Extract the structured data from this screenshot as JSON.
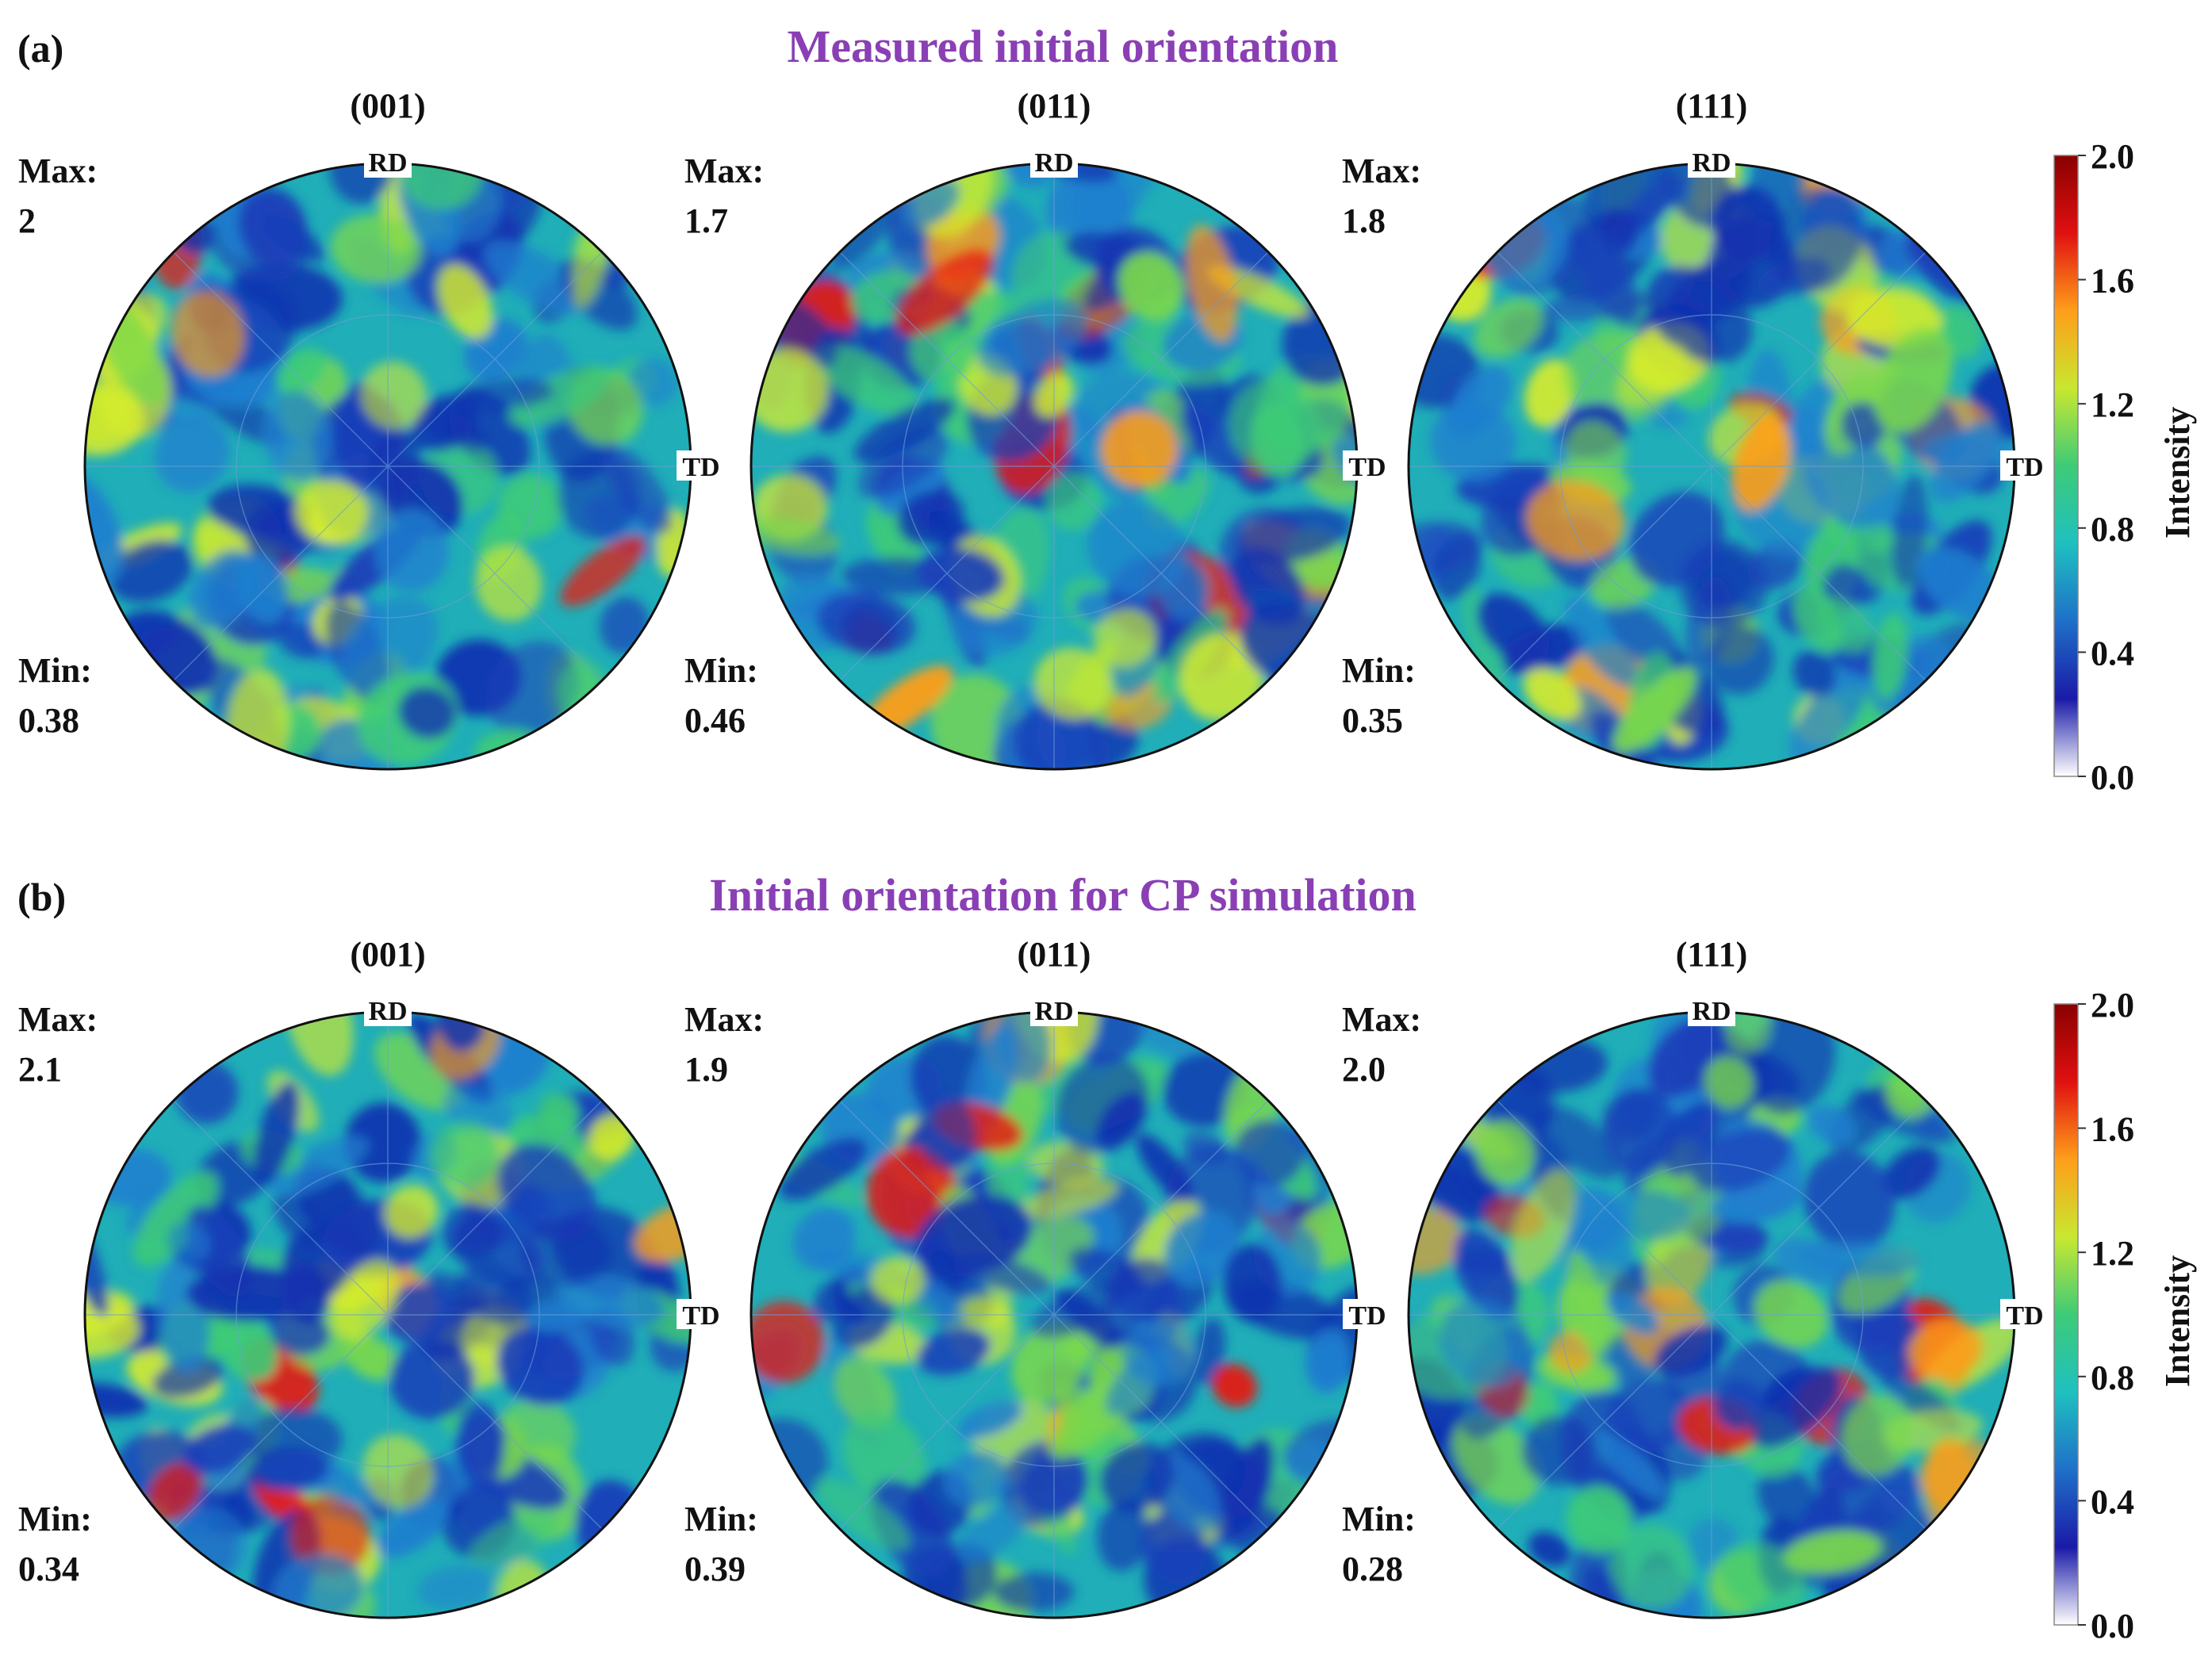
{
  "chart_data": {
    "type": "heatmap",
    "figure": "pole figures",
    "colorbar": {
      "label": "Intensity",
      "ticks": [
        "2.0",
        "1.6",
        "1.2",
        "0.8",
        "0.4",
        "0.0"
      ],
      "range": [
        0.0,
        2.0
      ],
      "colors": [
        "#ffffff",
        "#1a1aa8",
        "#1f70c8",
        "#1fc0c0",
        "#3ecb77",
        "#c8e830",
        "#ff9e1a",
        "#e01010",
        "#8a0000"
      ]
    },
    "axis_labels": {
      "rd": "RD",
      "td": "TD"
    },
    "panels": [
      {
        "tag": "(a)",
        "title": "Measured initial orientation",
        "figures": [
          {
            "plane": "(001)",
            "max_label": "Max:",
            "max": "2",
            "min_label": "Min:",
            "min": "0.38"
          },
          {
            "plane": "(011)",
            "max_label": "Max:",
            "max": "1.7",
            "min_label": "Min:",
            "min": "0.46"
          },
          {
            "plane": "(111)",
            "max_label": "Max:",
            "max": "1.8",
            "min_label": "Min:",
            "min": "0.35"
          }
        ]
      },
      {
        "tag": "(b)",
        "title": "Initial orientation for CP simulation",
        "figures": [
          {
            "plane": "(001)",
            "max_label": "Max:",
            "max": "2.1",
            "min_label": "Min:",
            "min": "0.34"
          },
          {
            "plane": "(011)",
            "max_label": "Max:",
            "max": "1.9",
            "min_label": "Min:",
            "min": "0.39"
          },
          {
            "plane": "(111)",
            "max_label": "Max:",
            "max": "2.0",
            "min_label": "Min:",
            "min": "0.28"
          }
        ]
      }
    ]
  }
}
